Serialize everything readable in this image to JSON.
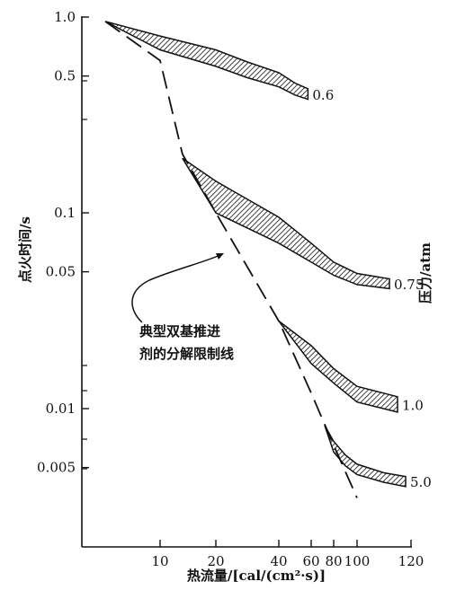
{
  "chart_data": {
    "type": "area",
    "title": "",
    "xlabel": "热流量/[cal/(cm²·s)]",
    "ylabel": "点火时间/s",
    "y2label": "压力/atm",
    "xlim": [
      0,
      120
    ],
    "ylim": [
      0.003,
      1.0
    ],
    "yscale": "log",
    "x_tick_labels": [
      "10",
      "20",
      "40",
      "60",
      "80",
      "100",
      "120"
    ],
    "x_tick_positions": [
      10,
      20,
      40,
      60,
      80,
      100,
      120
    ],
    "y_ticks": [
      1.0,
      0.5,
      0.1,
      0.05,
      0.01,
      0.005
    ],
    "y_tick_labels": [
      "1.0",
      "0.5",
      "0.1",
      "0.05",
      "0.01",
      "0.005"
    ],
    "series": [
      {
        "name": "0.6",
        "upper": [
          [
            3,
            0.95
          ],
          [
            10,
            0.8
          ],
          [
            20,
            0.68
          ],
          [
            30,
            0.59
          ],
          [
            40,
            0.52
          ],
          [
            50,
            0.46
          ],
          [
            58,
            0.43
          ]
        ],
        "lower": [
          [
            3,
            0.95
          ],
          [
            10,
            0.68
          ],
          [
            20,
            0.56
          ],
          [
            30,
            0.49
          ],
          [
            40,
            0.44
          ],
          [
            50,
            0.4
          ],
          [
            58,
            0.38
          ]
        ]
      },
      {
        "name": "0.75",
        "upper": [
          [
            14,
            0.19
          ],
          [
            20,
            0.145
          ],
          [
            40,
            0.095
          ],
          [
            60,
            0.07
          ],
          [
            80,
            0.056
          ],
          [
            100,
            0.049
          ],
          [
            112,
            0.046
          ]
        ],
        "lower": [
          [
            14,
            0.19
          ],
          [
            20,
            0.1
          ],
          [
            40,
            0.07
          ],
          [
            60,
            0.056
          ],
          [
            80,
            0.048
          ],
          [
            100,
            0.043
          ],
          [
            112,
            0.041
          ]
        ]
      },
      {
        "name": "1.0",
        "upper": [
          [
            40,
            0.028
          ],
          [
            60,
            0.021
          ],
          [
            80,
            0.016
          ],
          [
            100,
            0.013
          ],
          [
            115,
            0.0115
          ]
        ],
        "lower": [
          [
            40,
            0.028
          ],
          [
            60,
            0.017
          ],
          [
            80,
            0.0135
          ],
          [
            100,
            0.0108
          ],
          [
            115,
            0.0096
          ]
        ]
      },
      {
        "name": "5.0",
        "upper": [
          [
            72,
            0.0082
          ],
          [
            80,
            0.0068
          ],
          [
            90,
            0.0058
          ],
          [
            100,
            0.0052
          ],
          [
            110,
            0.0047
          ],
          [
            118,
            0.0045
          ]
        ],
        "lower": [
          [
            72,
            0.0082
          ],
          [
            80,
            0.006
          ],
          [
            90,
            0.0051
          ],
          [
            100,
            0.0046
          ],
          [
            110,
            0.0042
          ],
          [
            118,
            0.004
          ]
        ]
      }
    ],
    "reference_line": {
      "label": "典型双基推进剂的分解限制线",
      "style": "dashed",
      "points": [
        [
          3,
          0.95
        ],
        [
          10,
          0.6
        ],
        [
          14,
          0.2
        ],
        [
          20,
          0.1
        ],
        [
          40,
          0.028
        ],
        [
          60,
          0.012
        ],
        [
          80,
          0.0065
        ],
        [
          100,
          0.0035
        ]
      ]
    },
    "annotation": {
      "line1": "典型双基推进",
      "line2": "剂的分解限制线"
    }
  },
  "colors": {
    "ink": "#111111",
    "background": "#ffffff"
  }
}
